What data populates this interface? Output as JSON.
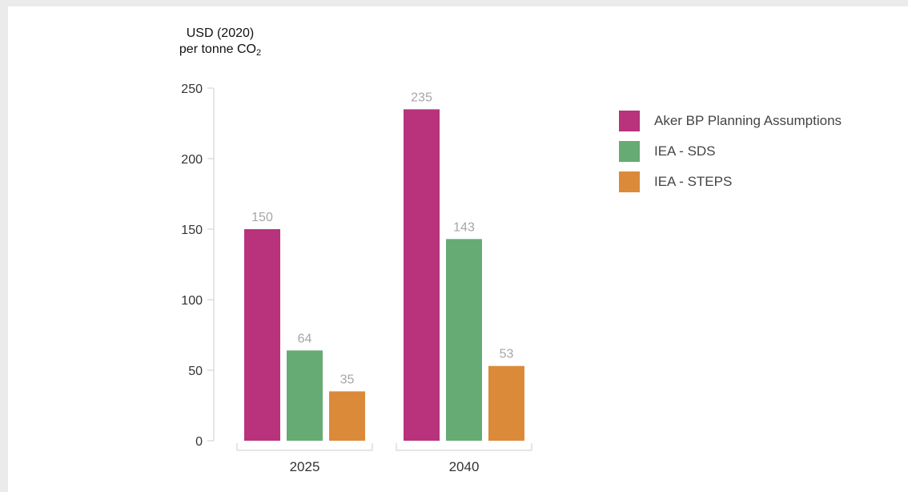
{
  "chart_data": {
    "type": "bar",
    "title": "",
    "ylabel_line1": "USD (2020)",
    "ylabel_line2": "per  tonne CO",
    "ylabel_subscript": "2",
    "xlabel": "",
    "categories": [
      "2025",
      "2040"
    ],
    "series": [
      {
        "name": "Aker BP Planning Assumptions",
        "color": "#b8327c",
        "values": [
          150,
          235
        ]
      },
      {
        "name": "IEA - SDS",
        "color": "#66ab73",
        "values": [
          64,
          143
        ]
      },
      {
        "name": "IEA - STEPS",
        "color": "#db8a3a",
        "values": [
          35,
          53
        ]
      }
    ],
    "ylim": [
      0,
      250
    ],
    "yticks": [
      0,
      50,
      100,
      150,
      200,
      250
    ],
    "legend_position": "top-right",
    "grid": false,
    "colors": {
      "axis": "#cccccc",
      "tick_label": "#333333",
      "value_label": "#a6a6a6"
    }
  }
}
